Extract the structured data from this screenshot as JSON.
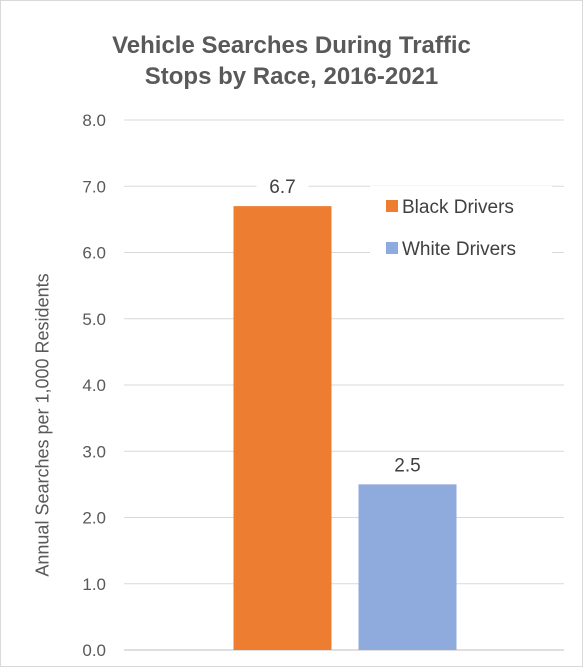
{
  "chart_data": {
    "type": "bar",
    "title_lines": [
      "Vehicle Searches During Traffic",
      "Stops by Race, 2016-2021"
    ],
    "ylabel": "Annual Searches per 1,000 Residents",
    "xlabel": "",
    "ylim": [
      0,
      8
    ],
    "yticks": [
      "0.0",
      "1.0",
      "2.0",
      "3.0",
      "4.0",
      "5.0",
      "6.0",
      "7.0",
      "8.0"
    ],
    "grid": true,
    "legend_position": "top-right",
    "series": [
      {
        "name": "Black Drivers",
        "value": 6.7,
        "label": "6.7",
        "color": "#ed7d31"
      },
      {
        "name": "White Drivers",
        "value": 2.5,
        "label": "2.5",
        "color": "#8faadc"
      }
    ]
  }
}
